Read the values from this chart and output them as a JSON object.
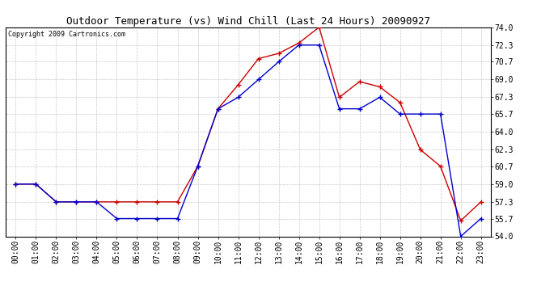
{
  "title": "Outdoor Temperature (vs) Wind Chill (Last 24 Hours) 20090927",
  "copyright": "Copyright 2009 Cartronics.com",
  "x_labels": [
    "00:00",
    "01:00",
    "02:00",
    "03:00",
    "04:00",
    "05:00",
    "06:00",
    "07:00",
    "08:00",
    "09:00",
    "10:00",
    "11:00",
    "12:00",
    "13:00",
    "14:00",
    "15:00",
    "16:00",
    "17:00",
    "18:00",
    "19:00",
    "20:00",
    "21:00",
    "22:00",
    "23:00"
  ],
  "temp": [
    59.0,
    59.0,
    57.3,
    57.3,
    57.3,
    57.3,
    57.3,
    57.3,
    57.3,
    60.7,
    66.2,
    68.5,
    71.0,
    71.5,
    72.5,
    74.0,
    67.3,
    68.8,
    68.3,
    66.8,
    62.3,
    60.7,
    55.5,
    57.3
  ],
  "wind_chill": [
    59.0,
    59.0,
    57.3,
    57.3,
    57.3,
    55.7,
    55.7,
    55.7,
    55.7,
    60.7,
    66.2,
    67.3,
    69.0,
    70.7,
    72.3,
    72.3,
    66.2,
    66.2,
    67.3,
    65.7,
    65.7,
    65.7,
    54.0,
    55.7
  ],
  "ylim": [
    54.0,
    74.0
  ],
  "yticks": [
    54.0,
    55.7,
    57.3,
    59.0,
    60.7,
    62.3,
    64.0,
    65.7,
    67.3,
    69.0,
    70.7,
    72.3,
    74.0
  ],
  "temp_color": "#cc0000",
  "wind_chill_color": "#0000cc",
  "grid_color": "#bbbbbb",
  "bg_color": "#ffffff",
  "plot_bg_color": "#ffffff",
  "title_fontsize": 9,
  "copyright_fontsize": 6,
  "tick_fontsize": 7
}
